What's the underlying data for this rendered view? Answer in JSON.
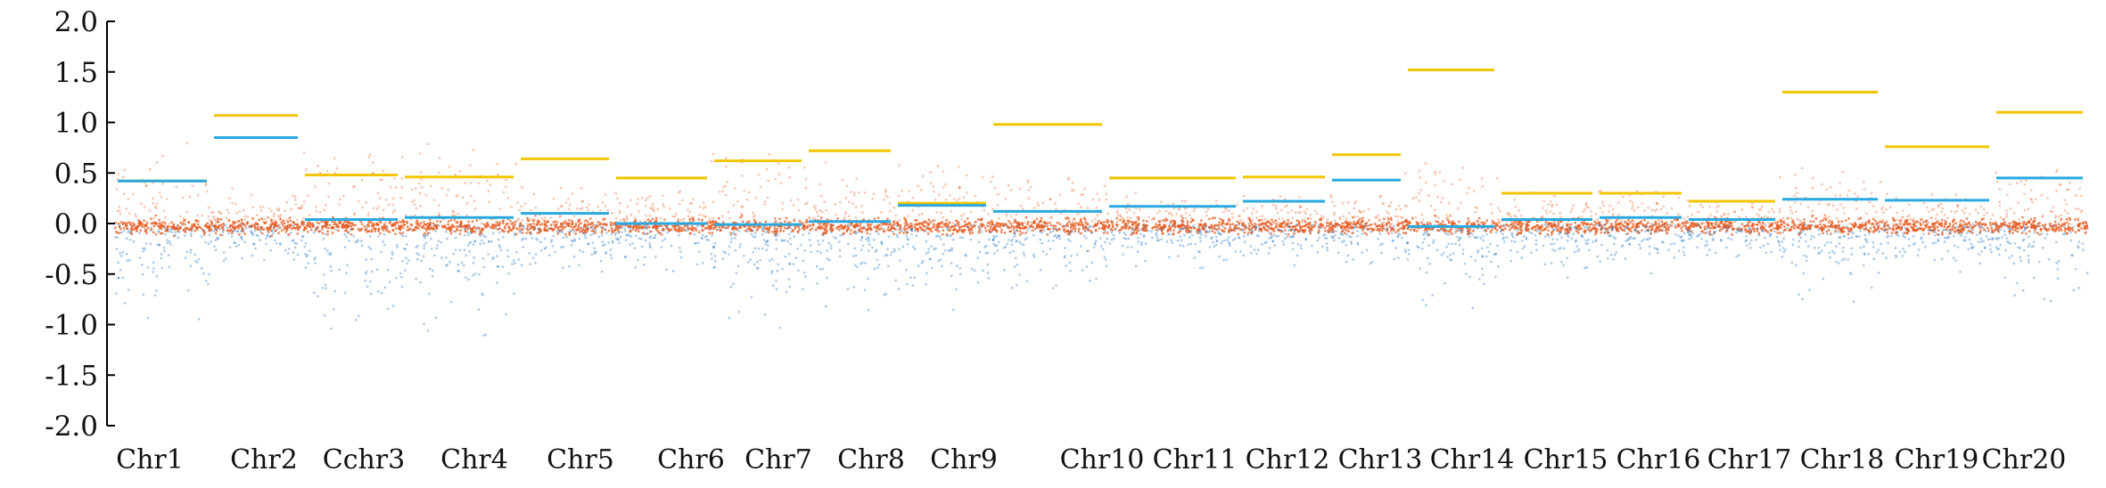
{
  "chart_data": {
    "type": "scatter",
    "title": "",
    "xlabel": "",
    "ylabel": "",
    "ylim": [
      -2.0,
      2.0
    ],
    "yticks": [
      "2.0",
      "1.5",
      "1.0",
      "0.5",
      "0.0",
      "-0.5",
      "-1.0",
      "-1.5",
      "-2.0"
    ],
    "grid": false,
    "legend": "none",
    "colors": {
      "orange_points": "#e8571a",
      "blue_points": "#2e7bc4",
      "yellow_line": "#f2c500",
      "blue_line": "#29a9e0",
      "axis": "#000000"
    },
    "categories": [
      "Chr1",
      "Chr2",
      "Cchr3",
      "Chr4",
      "Chr5",
      "Chr6",
      "Chr7",
      "Chr8",
      "Chr9",
      "Chr10",
      "Chr11",
      "Chr12",
      "Chr13",
      "Chr14",
      "Chr15",
      "Chr16",
      "Chr17",
      "Chr18",
      "Chr19",
      "Chr20"
    ],
    "series": [
      {
        "values": [
          0.42,
          1.07,
          0.48,
          0.46,
          0.64,
          0.45,
          0.62,
          0.72,
          0.2,
          0.98,
          0.45,
          0.46,
          0.68,
          1.52,
          0.3,
          0.3,
          0.22,
          1.3,
          0.76,
          1.1
        ]
      },
      {
        "values": [
          0.42,
          0.85,
          0.04,
          0.06,
          0.1,
          0.0,
          -0.01,
          0.02,
          0.18,
          0.12,
          0.17,
          0.22,
          0.43,
          -0.03,
          0.04,
          0.06,
          0.04,
          0.24,
          0.23,
          0.45
        ]
      }
    ]
  }
}
